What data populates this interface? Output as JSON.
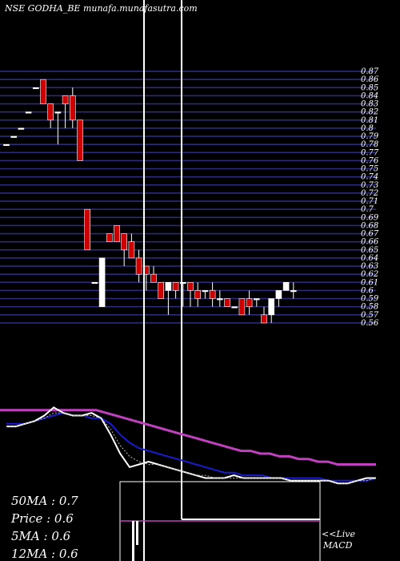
{
  "header": {
    "title": "NSE GODHA_BE munafa.munafasutra.com"
  },
  "chart_data": [
    {
      "type": "candlestick",
      "title": "NSE GODHA_BE munafa.munafasutra.com",
      "ylim": [
        0.555,
        0.875
      ],
      "y_ticks": [
        0.87,
        0.86,
        0.85,
        0.84,
        0.83,
        0.82,
        0.81,
        0.8,
        0.79,
        0.78,
        0.77,
        0.76,
        0.75,
        0.74,
        0.73,
        0.72,
        0.71,
        0.7,
        0.69,
        0.68,
        0.67,
        0.66,
        0.65,
        0.64,
        0.63,
        0.62,
        0.61,
        0.6,
        0.59,
        0.58,
        0.57,
        0.56
      ],
      "y_tick_labels": [
        "0.87",
        "0.86",
        "0.85",
        "0.84",
        "0.83",
        "0.82",
        "0.81",
        "0.8",
        "0.79",
        "0.78",
        "0.77",
        "0.76",
        "0.75",
        "0.74",
        "0.73",
        "0.72",
        "0.71",
        "0.7",
        "0.69",
        "0.68",
        "0.67",
        "0.66",
        "0.65",
        "0.64",
        "0.63",
        "0.62",
        "0.61",
        "0.6",
        "0.59",
        "0.58",
        "0.57",
        "0.56"
      ],
      "grid": true,
      "candles": [
        {
          "o": 0.78,
          "h": 0.78,
          "l": 0.78,
          "c": 0.78
        },
        {
          "o": 0.79,
          "h": 0.79,
          "l": 0.79,
          "c": 0.79
        },
        {
          "o": 0.8,
          "h": 0.8,
          "l": 0.8,
          "c": 0.8
        },
        {
          "o": 0.82,
          "h": 0.82,
          "l": 0.82,
          "c": 0.82
        },
        {
          "o": 0.85,
          "h": 0.85,
          "l": 0.85,
          "c": 0.85
        },
        {
          "o": 0.86,
          "h": 0.86,
          "l": 0.83,
          "c": 0.83
        },
        {
          "o": 0.83,
          "h": 0.83,
          "l": 0.8,
          "c": 0.81
        },
        {
          "o": 0.82,
          "h": 0.82,
          "l": 0.78,
          "c": 0.82
        },
        {
          "o": 0.84,
          "h": 0.84,
          "l": 0.8,
          "c": 0.83
        },
        {
          "o": 0.84,
          "h": 0.85,
          "l": 0.8,
          "c": 0.81
        },
        {
          "o": 0.81,
          "h": 0.81,
          "l": 0.76,
          "c": 0.76
        },
        {
          "o": 0.7,
          "h": 0.7,
          "l": 0.65,
          "c": 0.65
        },
        {
          "o": 0.61,
          "h": 0.61,
          "l": 0.61,
          "c": 0.61
        },
        {
          "o": 0.58,
          "h": 0.64,
          "l": 0.58,
          "c": 0.64
        },
        {
          "o": 0.67,
          "h": 0.67,
          "l": 0.66,
          "c": 0.66
        },
        {
          "o": 0.68,
          "h": 0.68,
          "l": 0.66,
          "c": 0.66
        },
        {
          "o": 0.67,
          "h": 0.67,
          "l": 0.63,
          "c": 0.65
        },
        {
          "o": 0.66,
          "h": 0.67,
          "l": 0.64,
          "c": 0.64
        },
        {
          "o": 0.64,
          "h": 0.65,
          "l": 0.61,
          "c": 0.62
        },
        {
          "o": 0.63,
          "h": 0.63,
          "l": 0.6,
          "c": 0.62
        },
        {
          "o": 0.62,
          "h": 0.63,
          "l": 0.61,
          "c": 0.61
        },
        {
          "o": 0.61,
          "h": 0.61,
          "l": 0.59,
          "c": 0.59
        },
        {
          "o": 0.6,
          "h": 0.61,
          "l": 0.57,
          "c": 0.61
        },
        {
          "o": 0.61,
          "h": 0.61,
          "l": 0.59,
          "c": 0.6
        },
        {
          "o": 0.61,
          "h": 0.61,
          "l": 0.58,
          "c": 0.61
        },
        {
          "o": 0.61,
          "h": 0.61,
          "l": 0.58,
          "c": 0.6
        },
        {
          "o": 0.6,
          "h": 0.61,
          "l": 0.58,
          "c": 0.59
        },
        {
          "o": 0.6,
          "h": 0.6,
          "l": 0.59,
          "c": 0.6
        },
        {
          "o": 0.6,
          "h": 0.61,
          "l": 0.58,
          "c": 0.59
        },
        {
          "o": 0.59,
          "h": 0.6,
          "l": 0.58,
          "c": 0.59
        },
        {
          "o": 0.59,
          "h": 0.59,
          "l": 0.58,
          "c": 0.58
        },
        {
          "o": 0.58,
          "h": 0.58,
          "l": 0.58,
          "c": 0.58
        },
        {
          "o": 0.59,
          "h": 0.59,
          "l": 0.57,
          "c": 0.57
        },
        {
          "o": 0.59,
          "h": 0.6,
          "l": 0.57,
          "c": 0.58
        },
        {
          "o": 0.59,
          "h": 0.59,
          "l": 0.58,
          "c": 0.59
        },
        {
          "o": 0.57,
          "h": 0.58,
          "l": 0.56,
          "c": 0.56
        },
        {
          "o": 0.57,
          "h": 0.59,
          "l": 0.56,
          "c": 0.59
        },
        {
          "o": 0.59,
          "h": 0.6,
          "l": 0.58,
          "c": 0.6
        },
        {
          "o": 0.6,
          "h": 0.61,
          "l": 0.6,
          "c": 0.61
        },
        {
          "o": 0.6,
          "h": 0.61,
          "l": 0.59,
          "c": 0.6
        }
      ],
      "colors": {
        "up": "#ffffff",
        "down": "#cc0000",
        "grid": "#2b2b7a",
        "wick": "#ffffff"
      }
    },
    {
      "type": "line",
      "series": [
        {
          "color": "#c040c0",
          "values": [
            0.85,
            0.85,
            0.85,
            0.85,
            0.85,
            0.85,
            0.85,
            0.85,
            0.85,
            0.85,
            0.85,
            0.84,
            0.83,
            0.82,
            0.81,
            0.8,
            0.79,
            0.78,
            0.77,
            0.76,
            0.75,
            0.74,
            0.73,
            0.72,
            0.71,
            0.7,
            0.7,
            0.69,
            0.69,
            0.68,
            0.68,
            0.67,
            0.67,
            0.66,
            0.66,
            0.65,
            0.65,
            0.65,
            0.65,
            0.65
          ]
        },
        {
          "color": "#1a1ad0",
          "values": [
            0.8,
            0.8,
            0.8,
            0.81,
            0.82,
            0.83,
            0.84,
            0.83,
            0.83,
            0.82,
            0.82,
            0.8,
            0.76,
            0.73,
            0.71,
            0.7,
            0.69,
            0.68,
            0.67,
            0.66,
            0.65,
            0.64,
            0.63,
            0.62,
            0.62,
            0.61,
            0.61,
            0.61,
            0.6,
            0.6,
            0.6,
            0.6,
            0.6,
            0.6,
            0.59,
            0.59,
            0.59,
            0.59,
            0.59,
            0.6
          ]
        },
        {
          "color": "#ffffff",
          "values": [
            0.79,
            0.79,
            0.8,
            0.81,
            0.83,
            0.86,
            0.84,
            0.83,
            0.83,
            0.84,
            0.82,
            0.76,
            0.69,
            0.64,
            0.65,
            0.66,
            0.65,
            0.64,
            0.63,
            0.62,
            0.61,
            0.6,
            0.6,
            0.6,
            0.61,
            0.6,
            0.6,
            0.6,
            0.6,
            0.6,
            0.59,
            0.59,
            0.59,
            0.59,
            0.59,
            0.58,
            0.58,
            0.59,
            0.6,
            0.6
          ]
        },
        {
          "color": "#bbbbbb",
          "values": [
            0.79,
            0.79,
            0.8,
            0.81,
            0.82,
            0.84,
            0.84,
            0.83,
            0.83,
            0.83,
            0.82,
            0.78,
            0.72,
            0.68,
            0.66,
            0.65,
            0.65,
            0.64,
            0.63,
            0.62,
            0.61,
            0.61,
            0.6,
            0.6,
            0.6,
            0.6,
            0.6,
            0.6,
            0.6,
            0.6,
            0.59,
            0.59,
            0.59,
            0.59,
            0.59,
            0.58,
            0.58,
            0.59,
            0.59,
            0.6
          ]
        }
      ]
    },
    {
      "type": "bar",
      "title": "MACD",
      "values": [
        0.02,
        0.0
      ]
    }
  ],
  "stats": {
    "ma50": "50MA : 0.7",
    "price": "Price  : 0.6",
    "ma5": "5MA : 0.6",
    "ma12": "12MA : 0.6"
  },
  "macd": {
    "live": "<<Live",
    "label": "MACD"
  }
}
